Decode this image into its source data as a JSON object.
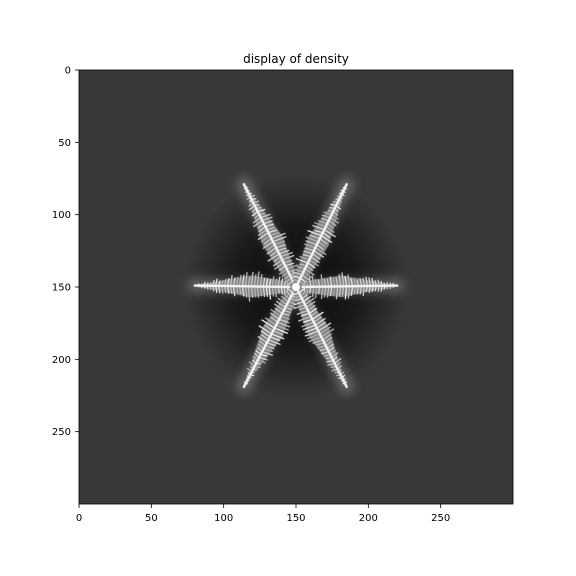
{
  "chart_data": {
    "type": "heatmap",
    "title": "display of density",
    "xlabel": "",
    "ylabel": "",
    "xlim": [
      0,
      300
    ],
    "ylim": [
      300,
      0
    ],
    "x_ticks": [
      0,
      50,
      100,
      150,
      200,
      250
    ],
    "y_ticks": [
      0,
      50,
      100,
      150,
      200,
      250
    ],
    "grid": false,
    "colormap": "gray",
    "background_color": "#383838",
    "center": [
      150,
      150
    ],
    "arm_tips": [
      {
        "x": 80,
        "y": 149
      },
      {
        "x": 220,
        "y": 149
      },
      {
        "x": 114,
        "y": 79
      },
      {
        "x": 185,
        "y": 79
      },
      {
        "x": 114,
        "y": 219
      },
      {
        "x": 185,
        "y": 219
      }
    ]
  }
}
